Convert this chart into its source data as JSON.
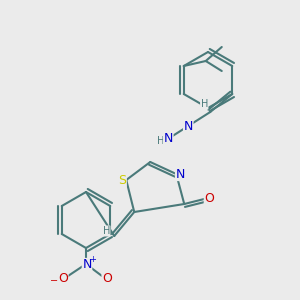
{
  "background_color": "#ebebeb",
  "bond_color": "#4a7a7a",
  "bond_lw": 1.5,
  "atom_colors": {
    "S": "#cccc00",
    "N": "#0000cc",
    "O": "#cc0000",
    "C": "#4a7a7a",
    "H": "#4a7a7a"
  },
  "font_size": 8,
  "figsize": [
    3.0,
    3.0
  ],
  "dpi": 100
}
